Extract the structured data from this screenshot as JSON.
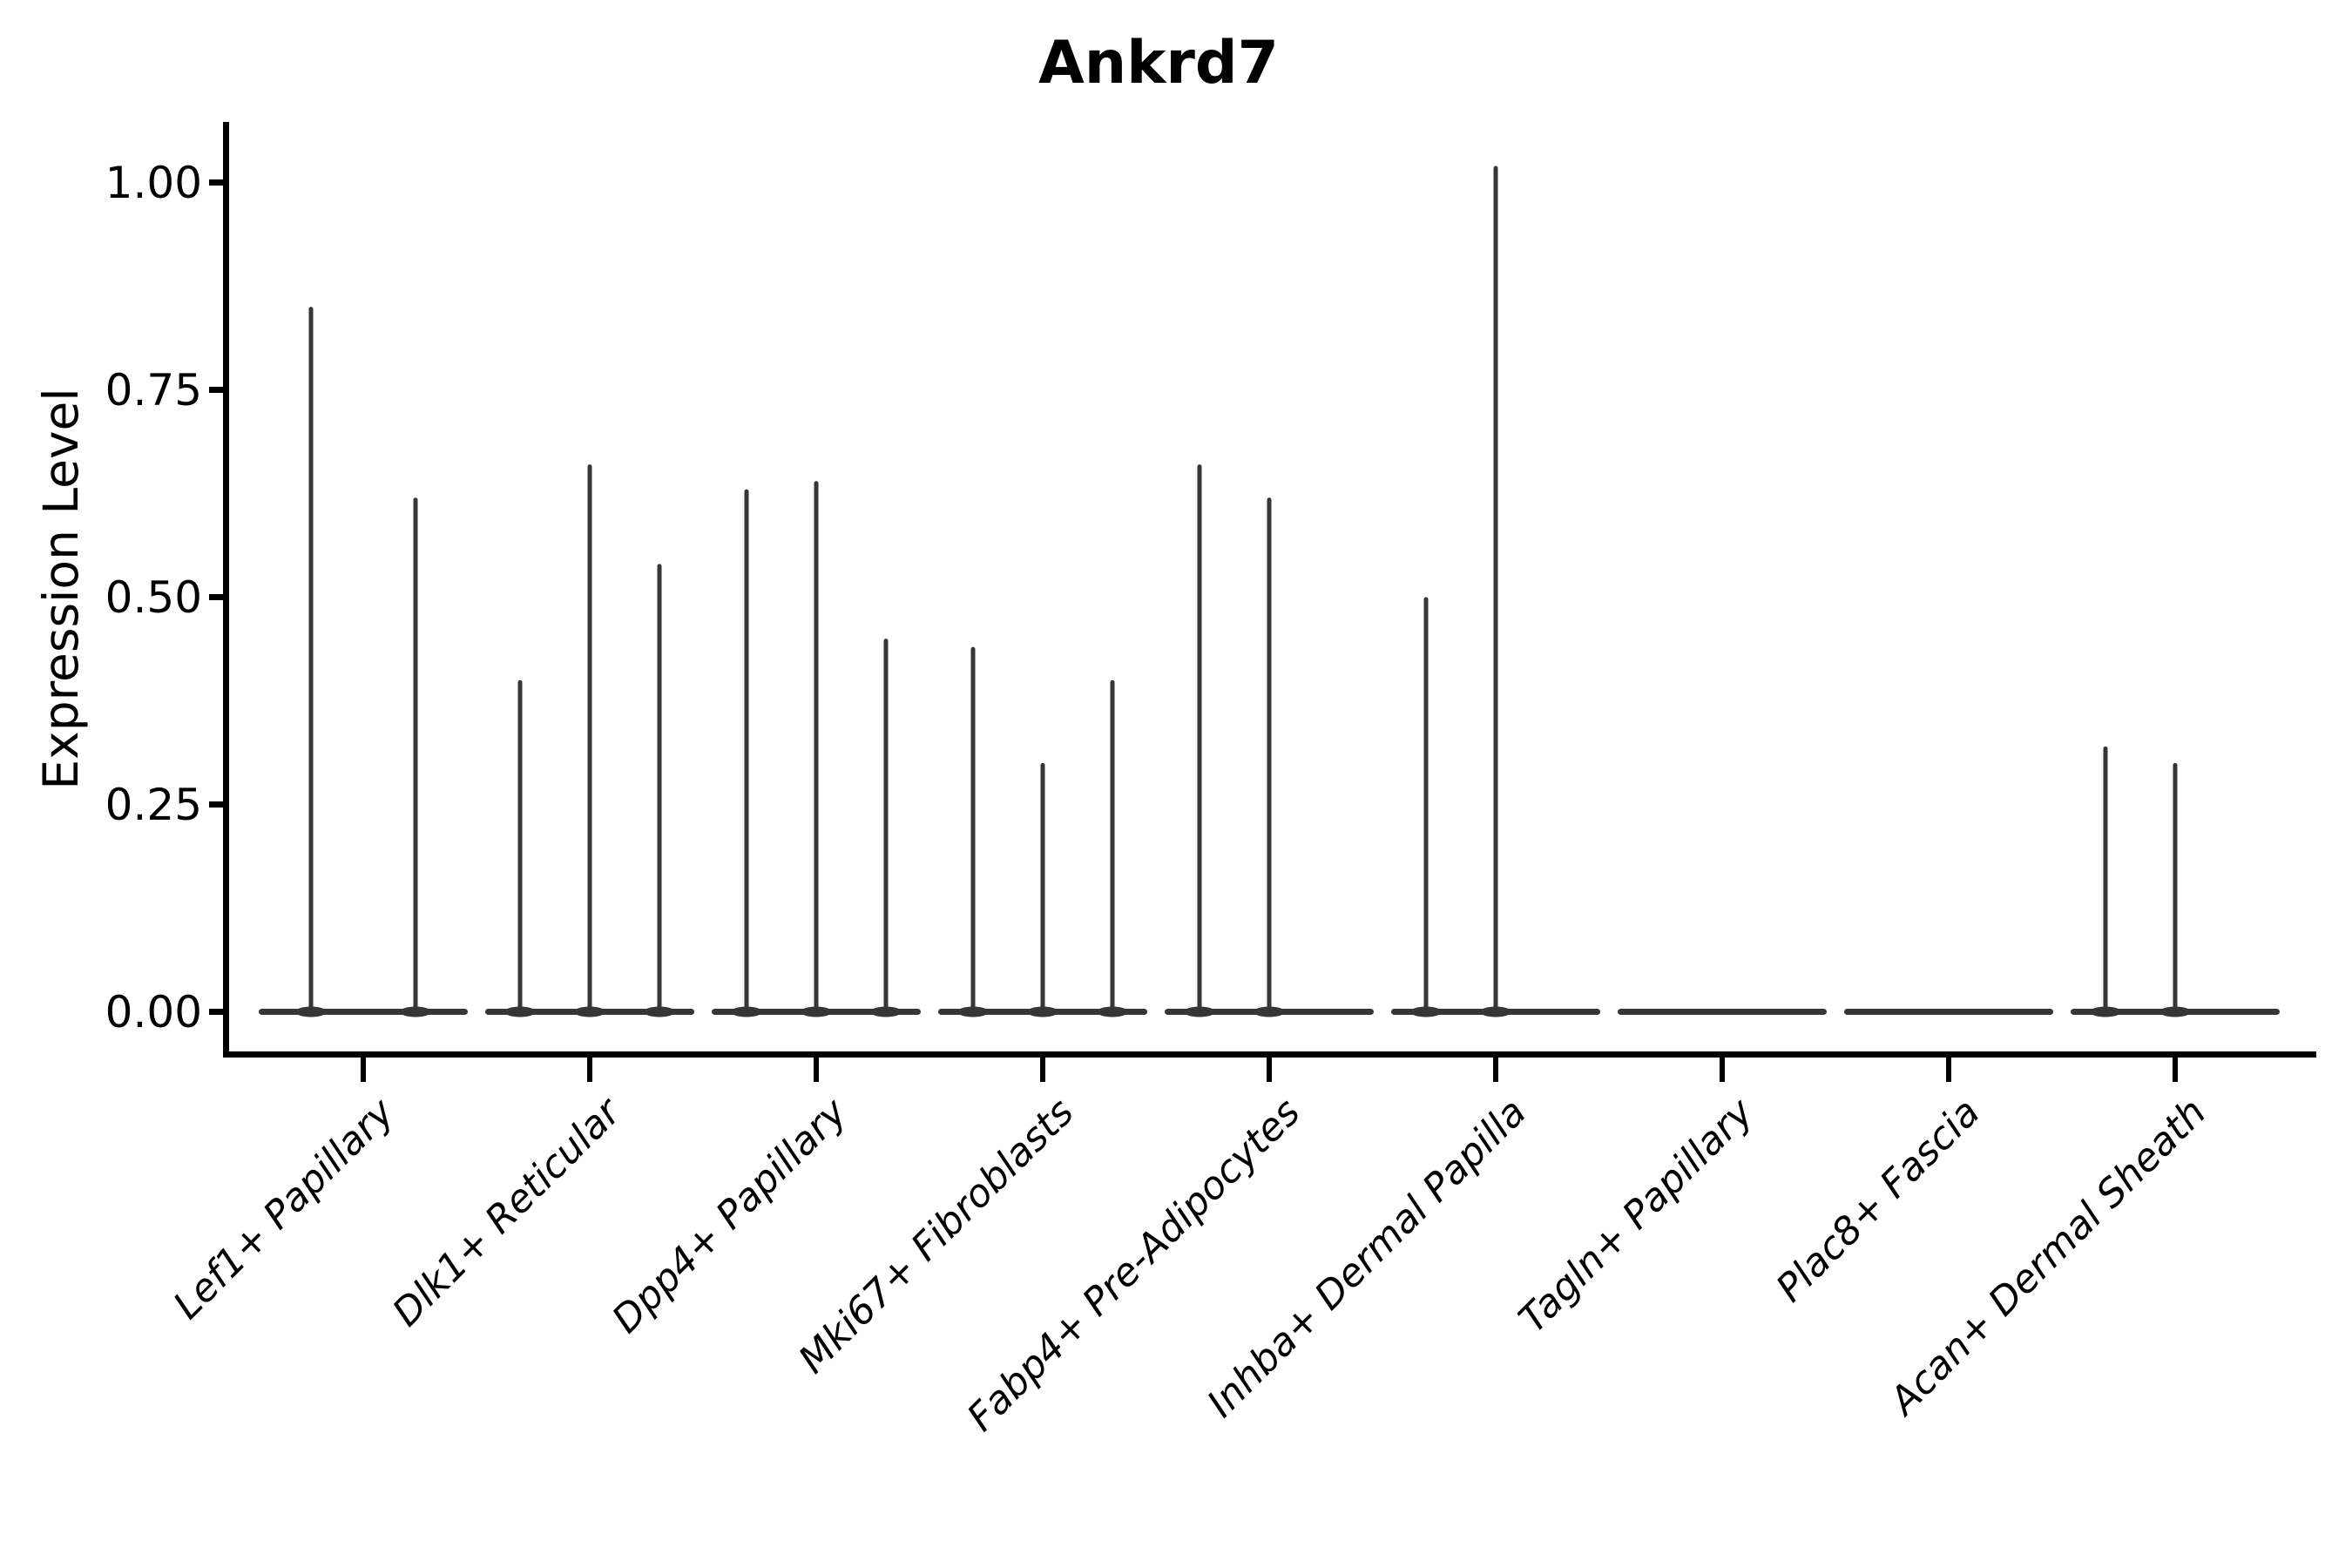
{
  "title": "Ankrd7",
  "colors": {
    "background": "#ffffff",
    "axis": "#000000",
    "text": "#000000",
    "violin": "#363636"
  },
  "chart_data": {
    "type": "violin",
    "title": "Ankrd7",
    "xlabel": "",
    "ylabel": "Expression Level",
    "ylim": [
      -0.05,
      1.07
    ],
    "yticks": [
      0.0,
      0.25,
      0.5,
      0.75,
      1.0
    ],
    "ytick_labels": [
      "0.00",
      "0.25",
      "0.50",
      "0.75",
      "1.00"
    ],
    "grid": false,
    "legend_position": "none",
    "x_label_rotation_deg": 45,
    "categories": [
      "Lef1+ Papillary",
      "Dlk1+ Reticular",
      "Dpp4+ Papillary",
      "Mki67+ Fibroblasts",
      "Fabp4+ Pre-Adipocytes",
      "Inhba+ Dermal Papilla",
      "Tagln+ Papillary",
      "Plac8+ Fascia",
      "Acan+ Dermal Sheath"
    ],
    "groups": [
      {
        "category": "Lef1+ Papillary",
        "violin_max_values": [
          0.85,
          0.62
        ]
      },
      {
        "category": "Dlk1+ Reticular",
        "violin_max_values": [
          0.4,
          0.66,
          0.54
        ]
      },
      {
        "category": "Dpp4+ Papillary",
        "violin_max_values": [
          0.63,
          0.64,
          0.45
        ]
      },
      {
        "category": "Mki67+ Fibroblasts",
        "violin_max_values": [
          0.44,
          0.3,
          0.4
        ]
      },
      {
        "category": "Fabp4+ Pre-Adipocytes",
        "violin_max_values": [
          0.66,
          0.62,
          0.0
        ]
      },
      {
        "category": "Inhba+ Dermal Papilla",
        "violin_max_values": [
          0.5,
          1.02,
          0.0
        ]
      },
      {
        "category": "Tagln+ Papillary",
        "violin_max_values": [
          0.0,
          0.0,
          0.0
        ]
      },
      {
        "category": "Plac8+ Fascia",
        "violin_max_values": [
          0.0,
          0.0,
          0.0
        ]
      },
      {
        "category": "Acan+ Dermal Sheath",
        "violin_max_values": [
          0.32,
          0.3,
          0.0
        ]
      }
    ]
  }
}
